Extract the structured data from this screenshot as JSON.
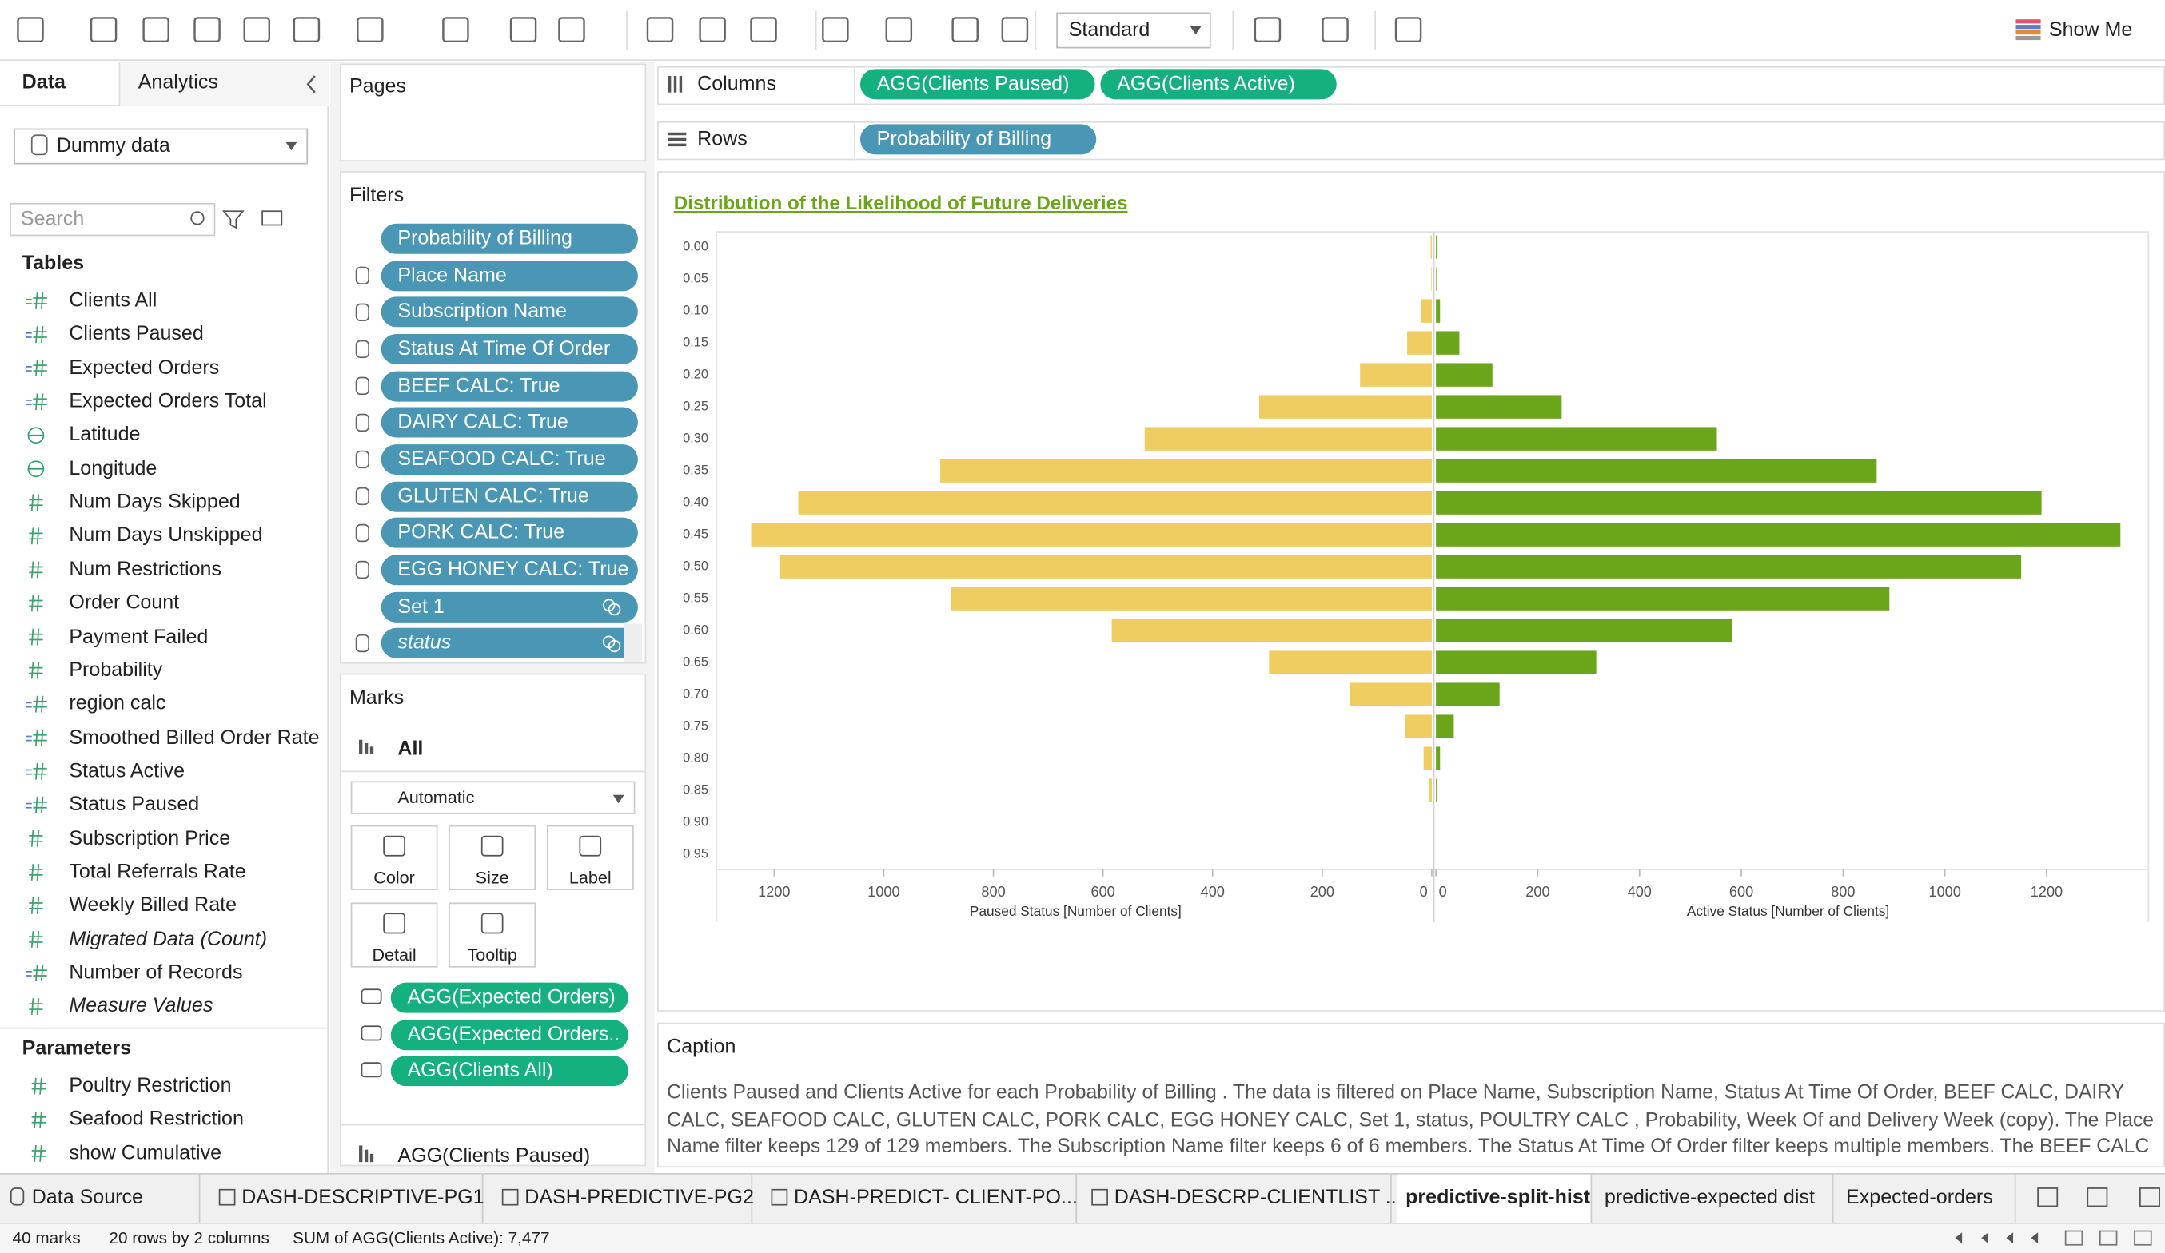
{
  "toolbar": {
    "view_mode": "Standard",
    "show_me": "Show Me"
  },
  "data_pane": {
    "tabs": [
      "Data",
      "Analytics"
    ],
    "data_source": "Dummy data",
    "search_placeholder": "Search",
    "tables_heading": "Tables",
    "fields": [
      {
        "name": "Clients All",
        "kind": "calc"
      },
      {
        "name": "Clients Paused",
        "kind": "calc"
      },
      {
        "name": "Expected Orders",
        "kind": "calc"
      },
      {
        "name": "Expected Orders Total",
        "kind": "calc"
      },
      {
        "name": "Latitude",
        "kind": "geo"
      },
      {
        "name": "Longitude",
        "kind": "geo"
      },
      {
        "name": "Num Days Skipped",
        "kind": "num"
      },
      {
        "name": "Num Days Unskipped",
        "kind": "num"
      },
      {
        "name": "Num Restrictions",
        "kind": "num"
      },
      {
        "name": "Order Count",
        "kind": "num"
      },
      {
        "name": "Payment Failed",
        "kind": "num"
      },
      {
        "name": "Probability",
        "kind": "num"
      },
      {
        "name": "region calc",
        "kind": "calc"
      },
      {
        "name": "Smoothed Billed Order Rate",
        "kind": "calc"
      },
      {
        "name": "Status Active",
        "kind": "calc"
      },
      {
        "name": "Status Paused",
        "kind": "calc"
      },
      {
        "name": "Subscription Price",
        "kind": "num"
      },
      {
        "name": "Total Referrals Rate",
        "kind": "num"
      },
      {
        "name": "Weekly Billed Rate",
        "kind": "num"
      },
      {
        "name": "Migrated Data (Count)",
        "kind": "num",
        "italic": true
      },
      {
        "name": "Number of Records",
        "kind": "calc"
      },
      {
        "name": "Measure Values",
        "kind": "num",
        "italic": true
      }
    ],
    "parameters_heading": "Parameters",
    "parameters": [
      "Poultry Restriction",
      "Seafood Restriction",
      "show Cumulative"
    ]
  },
  "pages": {
    "title": "Pages"
  },
  "filters": {
    "title": "Filters",
    "items": [
      {
        "name": "Probability of Billing",
        "icon": false
      },
      {
        "name": "Place Name",
        "icon": true
      },
      {
        "name": "Subscription Name",
        "icon": true
      },
      {
        "name": "Status At Time Of Order",
        "icon": true
      },
      {
        "name": "BEEF CALC: True",
        "icon": true
      },
      {
        "name": "DAIRY CALC: True",
        "icon": true
      },
      {
        "name": "SEAFOOD CALC: True",
        "icon": true
      },
      {
        "name": "GLUTEN CALC: True",
        "icon": true
      },
      {
        "name": "PORK CALC: True",
        "icon": true
      },
      {
        "name": "EGG HONEY CALC: True",
        "icon": true
      },
      {
        "name": "Set 1",
        "icon": false,
        "set": true
      },
      {
        "name": "status",
        "icon": true,
        "set": true,
        "italic": true
      }
    ]
  },
  "marks": {
    "title": "Marks",
    "all": "All",
    "mark_type": "Automatic",
    "buttons": [
      "Color",
      "Size",
      "Label",
      "Detail",
      "Tooltip"
    ],
    "fields": [
      "AGG(Expected Orders)",
      "AGG(Expected Orders..",
      "AGG(Clients All)"
    ],
    "next_card": "AGG(Clients Paused)"
  },
  "shelves": {
    "columns": {
      "label": "Columns",
      "pills": [
        "AGG(Clients Paused)",
        "AGG(Clients Active)"
      ]
    },
    "rows": {
      "label": "Rows",
      "pills": [
        "Probability of Billing"
      ]
    }
  },
  "chart_data": {
    "type": "bar",
    "title": "Distribution of the Likelihood of Future Deliveries",
    "categories": [
      "0.00",
      "0.05",
      "0.10",
      "0.15",
      "0.20",
      "0.25",
      "0.30",
      "0.35",
      "0.40",
      "0.45",
      "0.50",
      "0.55",
      "0.60",
      "0.65",
      "0.70",
      "0.75",
      "0.80",
      "0.85",
      "0.90",
      "0.95"
    ],
    "series": [
      {
        "name": "Paused Status [Number of Clients]",
        "color": "#f0cd61",
        "values": [
          2,
          1,
          20,
          45,
          131,
          315,
          524,
          897,
          1156,
          1242,
          1189,
          877,
          584,
          297,
          149,
          48,
          15,
          5,
          0,
          0
        ],
        "xlim": [
          1300,
          0
        ],
        "xticks": [
          1200,
          1000,
          800,
          600,
          400,
          200,
          0
        ]
      },
      {
        "name": "Active Status [Number of Clients]",
        "color": "#6aa51a",
        "values": [
          2,
          1,
          8,
          46,
          111,
          247,
          552,
          866,
          1190,
          1345,
          1150,
          891,
          582,
          315,
          125,
          35,
          8,
          3,
          0,
          0
        ],
        "xlim": [
          0,
          1400
        ],
        "xticks": [
          0,
          200,
          400,
          600,
          800,
          1000,
          1200
        ]
      }
    ]
  },
  "caption": {
    "title": "Caption",
    "text": "Clients Paused and Clients Active for each Probability of Billing . The data is filtered on Place Name, Subscription Name, Status At Time Of Order, BEEF CALC, DAIRY CALC, SEAFOOD CALC, GLUTEN CALC, PORK CALC, EGG HONEY CALC, Set 1, status, POULTRY CALC , Probability, Week Of and Delivery Week (copy). The Place Name filter keeps 129 of 129 members. The Subscription Name filter keeps 6 of 6 members. The Status At Time Of Order filter keeps multiple members. The BEEF CALC filter"
  },
  "sheet_tabs": [
    "Data Source",
    "DASH-DESCRIPTIVE-PG1",
    "DASH-PREDICTIVE-PG2",
    "DASH-PREDICT- CLIENT-PO...",
    "DASH-DESCRP-CLIENTLIST ...",
    "predictive-split-hist",
    "predictive-expected dist",
    "Expected-orders"
  ],
  "active_tab": 5,
  "status_bar": [
    "40 marks",
    "20 rows by 2 columns",
    "SUM of AGG(Clients Active): 7,477"
  ]
}
